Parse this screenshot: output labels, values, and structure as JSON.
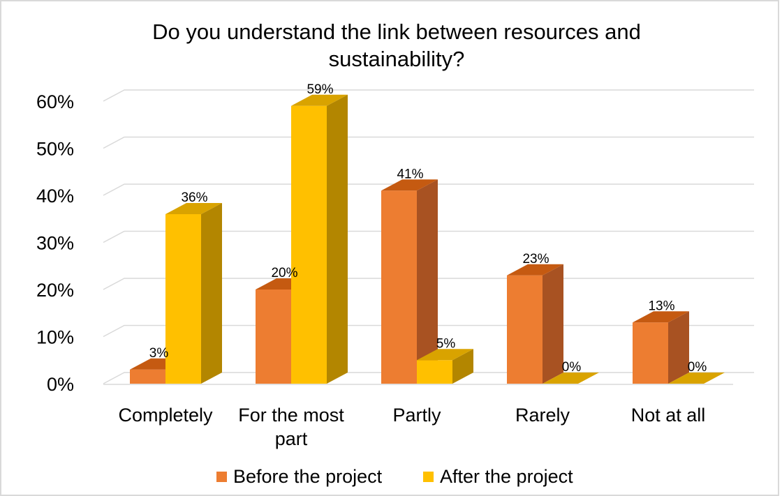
{
  "chart_data": {
    "type": "bar",
    "title": "Do you understand the link between resources and sustainability?",
    "title_lines": [
      "Do you understand the link between resources and",
      "sustainability?"
    ],
    "categories": [
      "Completely",
      "For the most part",
      "Partly",
      "Rarely",
      "Not at all"
    ],
    "category_lines": [
      [
        "Completely"
      ],
      [
        "For the most",
        "part"
      ],
      [
        "Partly"
      ],
      [
        "Rarely"
      ],
      [
        "Not at all"
      ]
    ],
    "series": [
      {
        "name": "Before the project",
        "values": [
          3,
          20,
          41,
          23,
          13
        ],
        "labels": [
          "3%",
          "20%",
          "41%",
          "23%",
          "13%"
        ],
        "color": "#ED7D31",
        "side_color": "#A85222",
        "top_color": "#C55A11"
      },
      {
        "name": "After the project",
        "values": [
          36,
          59,
          5,
          0,
          0
        ],
        "labels": [
          "36%",
          "59%",
          "5%",
          "0%",
          "0%"
        ],
        "color": "#FFC000",
        "side_color": "#B38600",
        "top_color": "#D9A300"
      }
    ],
    "y_ticks": [
      "0%",
      "10%",
      "20%",
      "30%",
      "40%",
      "50%",
      "60%"
    ],
    "ylim": [
      0,
      60
    ],
    "xlabel": "",
    "ylabel": "",
    "style": "3d-clustered-column",
    "grid": true,
    "legend_position": "bottom"
  }
}
